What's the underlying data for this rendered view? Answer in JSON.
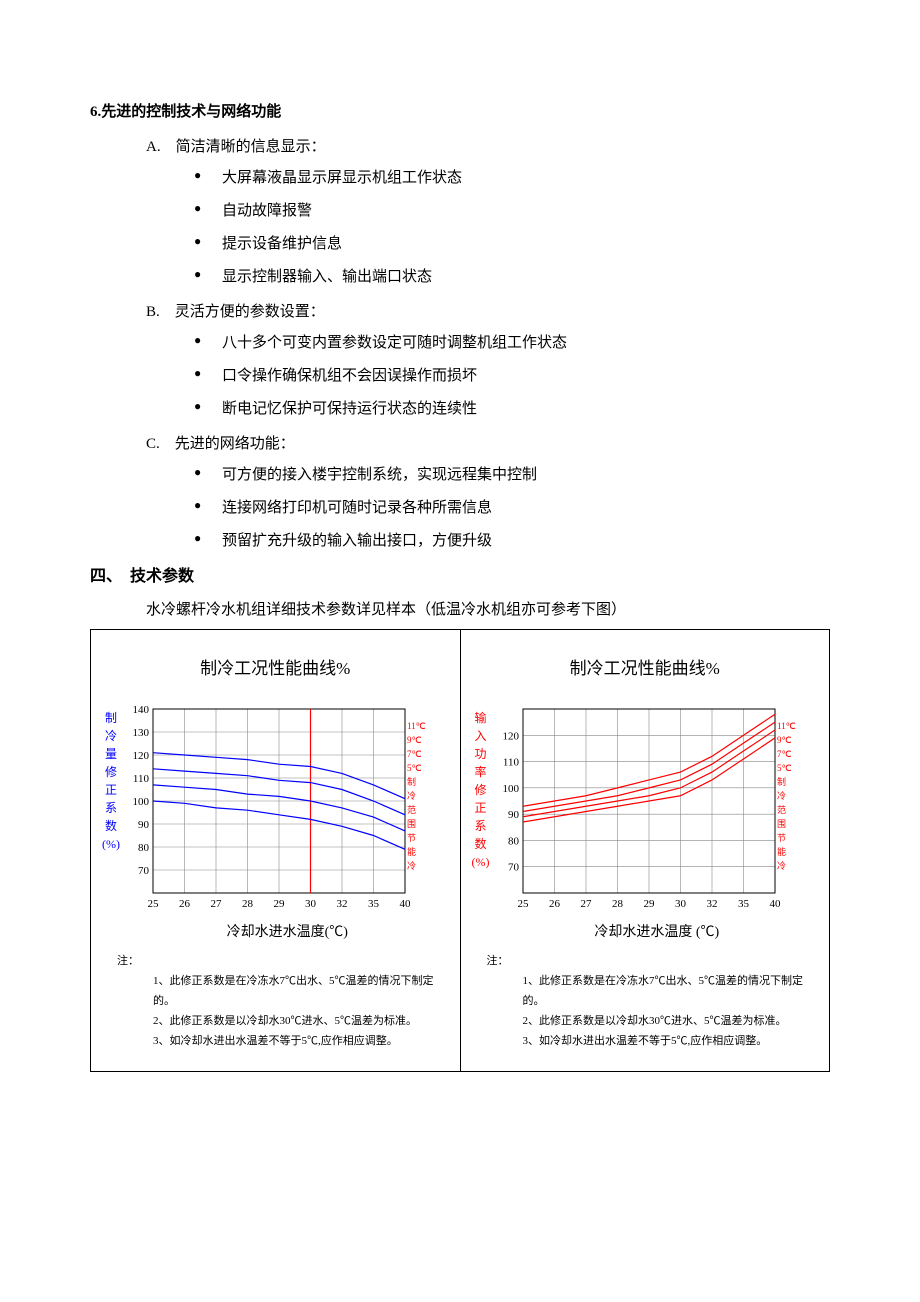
{
  "section6": {
    "title": "6.先进的控制技术与网络功能",
    "items": [
      {
        "letter": "A.",
        "label": "简洁清晰的信息显示：",
        "bullets": [
          "大屏幕液晶显示屏显示机组工作状态",
          "自动故障报警",
          "提示设备维护信息",
          "显示控制器输入、输出端口状态"
        ]
      },
      {
        "letter": "B.",
        "label": "灵活方便的参数设置：",
        "bullets": [
          "八十多个可变内置参数设定可随时调整机组工作状态",
          "口令操作确保机组不会因误操作而损坏",
          "断电记忆保护可保持运行状态的连续性"
        ]
      },
      {
        "letter": "C.",
        "label": "先进的网络功能：",
        "bullets": [
          "可方便的接入楼宇控制系统，实现远程集中控制",
          "连接网络打印机可随时记录各种所需信息",
          "预留扩充升级的输入输出接口，方便升级"
        ]
      }
    ]
  },
  "section4": {
    "title": "四、　技术参数",
    "desc": "水冷螺杆冷水机组详细技术参数详见样本（低温冷水机组亦可参考下图）"
  },
  "chart_left": {
    "title": "制冷工况性能曲线%",
    "type": "line",
    "ylabel_chars": [
      "制",
      "冷",
      "量",
      "修",
      "正",
      "系",
      "数",
      "(%)"
    ],
    "ylabel_color": "#0000ff",
    "xlabel": "冷却水进水温度(℃)",
    "x_categories": [
      "25",
      "26",
      "27",
      "28",
      "29",
      "30",
      "32",
      "35",
      "40"
    ],
    "y_ticks": [
      70,
      80,
      90,
      100,
      110,
      120,
      130,
      140
    ],
    "ylim": [
      60,
      140
    ],
    "series": [
      {
        "name": "11℃",
        "color": "#0000ff",
        "values": [
          121,
          120,
          119,
          118,
          116,
          115,
          112,
          107,
          101
        ]
      },
      {
        "name": "9℃",
        "color": "#0000ff",
        "values": [
          114,
          113,
          112,
          111,
          109,
          108,
          105,
          100,
          94
        ]
      },
      {
        "name": "7℃",
        "color": "#0000ff",
        "values": [
          107,
          106,
          105,
          103,
          102,
          100,
          97,
          93,
          87
        ]
      },
      {
        "name": "5℃",
        "color": "#0000ff",
        "values": [
          100,
          99,
          97,
          96,
          94,
          92,
          89,
          85,
          79
        ]
      }
    ],
    "ref_line_x_index": 5,
    "ref_line_color": "#ff0000",
    "grid_color": "#888888",
    "line_width": 1.2,
    "side_labels": [
      "11℃",
      "9℃",
      "7℃",
      "5℃",
      "制",
      "冷",
      "范",
      "围",
      "节",
      "能",
      "冷"
    ],
    "side_label_color": "#ff0000",
    "notes_label": "注：",
    "notes": [
      "1、此修正系数是在冷冻水7℃出水、5℃温差的情况下制定的。",
      "2、此修正系数是以冷却水30℃进水、5℃温差为标准。",
      "3、如冷却水进出水温差不等于5℃,应作相应调整。"
    ]
  },
  "chart_right": {
    "title": "制冷工况性能曲线%",
    "type": "line",
    "ylabel_chars": [
      "输",
      "入",
      "功",
      "率",
      "修",
      "正",
      "系",
      "数",
      "(%)"
    ],
    "ylabel_color": "#ff0000",
    "xlabel": "冷却水进水温度 (℃)",
    "x_categories": [
      "25",
      "26",
      "27",
      "28",
      "29",
      "30",
      "32",
      "35",
      "40"
    ],
    "y_ticks": [
      70,
      80,
      90,
      100,
      110,
      120
    ],
    "ylim": [
      60,
      130
    ],
    "series": [
      {
        "name": "11℃",
        "color": "#ff0000",
        "values": [
          93,
          95,
          97,
          100,
          103,
          106,
          112,
          120,
          128
        ]
      },
      {
        "name": "9℃",
        "color": "#ff0000",
        "values": [
          91,
          93,
          95,
          97,
          100,
          103,
          109,
          117,
          125
        ]
      },
      {
        "name": "7℃",
        "color": "#ff0000",
        "values": [
          89,
          91,
          93,
          95,
          97,
          100,
          106,
          114,
          122
        ]
      },
      {
        "name": "5℃",
        "color": "#ff0000",
        "values": [
          87,
          89,
          91,
          93,
          95,
          97,
          103,
          111,
          119
        ]
      }
    ],
    "grid_color": "#888888",
    "line_width": 1.2,
    "side_labels": [
      "11℃",
      "9℃",
      "7℃",
      "5℃",
      "制",
      "冷",
      "范",
      "围",
      "节",
      "能",
      "冷"
    ],
    "side_label_color": "#ff0000",
    "notes_label": "注：",
    "notes": [
      "1、此修正系数是在冷冻水7℃出水、5℃温差的情况下制定的。",
      "2、此修正系数是以冷却水30℃进水、5℃温差为标准。",
      "3、如冷却水进出水温差不等于5℃,应作相应调整。"
    ]
  }
}
